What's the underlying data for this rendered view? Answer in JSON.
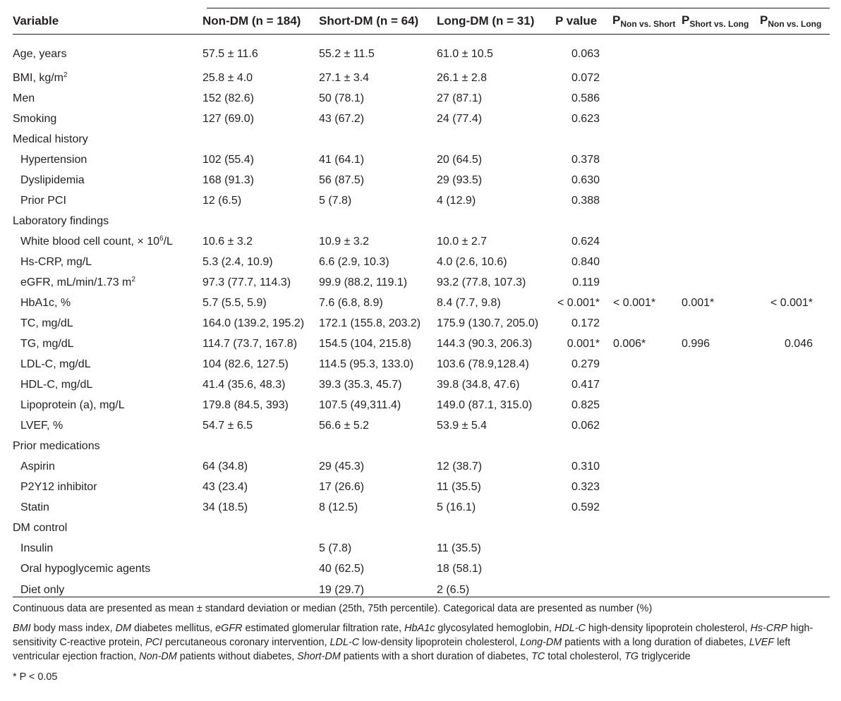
{
  "header": {
    "variable": "Variable",
    "non_dm": "Non-DM (n = 184)",
    "short_dm": "Short-DM (n = 64)",
    "long_dm": "Long-DM (n = 31)",
    "p_value": "P value",
    "p_non_short_base": "P",
    "p_non_short_sub": "Non vs. Short",
    "p_short_long_base": "P",
    "p_short_long_sub": "Short vs. Long",
    "p_non_long_base": "P",
    "p_non_long_sub": "Non vs. Long"
  },
  "rows": [
    {
      "label": "Age, years",
      "non": "57.5 ± 11.6",
      "short": "55.2 ± 11.5",
      "long": "61.0 ± 10.5",
      "p": "0.063",
      "p1": "",
      "p2": "",
      "p3": ""
    },
    {
      "label": "BMI, kg/m",
      "label_sup": "2",
      "non": "25.8 ± 4.0",
      "short": "27.1 ± 3.4",
      "long": "26.1 ± 2.8",
      "p": "0.072",
      "p1": "",
      "p2": "",
      "p3": ""
    },
    {
      "label": "Men",
      "non": "152 (82.6)",
      "short": "50 (78.1)",
      "long": "27 (87.1)",
      "p": "0.586",
      "p1": "",
      "p2": "",
      "p3": ""
    },
    {
      "label": "Smoking",
      "non": "127 (69.0)",
      "short": "43 (67.2)",
      "long": "24 (77.4)",
      "p": "0.623",
      "p1": "",
      "p2": "",
      "p3": ""
    },
    {
      "label": "Medical history",
      "non": "",
      "short": "",
      "long": "",
      "p": "",
      "p1": "",
      "p2": "",
      "p3": ""
    },
    {
      "label": "Hypertension",
      "non": "102 (55.4)",
      "short": "41 (64.1)",
      "long": "20 (64.5)",
      "p": "0.378",
      "p1": "",
      "p2": "",
      "p3": ""
    },
    {
      "label": "Dyslipidemia",
      "non": "168 (91.3)",
      "short": "56 (87.5)",
      "long": "29 (93.5)",
      "p": "0.630",
      "p1": "",
      "p2": "",
      "p3": ""
    },
    {
      "label": "Prior PCI",
      "non": "12 (6.5)",
      "short": "5 (7.8)",
      "long": "4 (12.9)",
      "p": "0.388",
      "p1": "",
      "p2": "",
      "p3": ""
    },
    {
      "label": "Laboratory findings",
      "non": "",
      "short": "",
      "long": "",
      "p": "",
      "p1": "",
      "p2": "",
      "p3": ""
    },
    {
      "label": "White blood cell count, × 10",
      "label_sup": "6",
      "label_after": "/L",
      "non": "10.6 ± 3.2",
      "short": "10.9 ± 3.2",
      "long": "10.0 ± 2.7",
      "p": "0.624",
      "p1": "",
      "p2": "",
      "p3": ""
    },
    {
      "label": "Hs-CRP, mg/L",
      "non": "5.3 (2.4, 10.9)",
      "short": "6.6 (2.9, 10.3)",
      "long": "4.0 (2.6, 10.6)",
      "p": "0.840",
      "p1": "",
      "p2": "",
      "p3": ""
    },
    {
      "label": "eGFR, mL/min/1.73 m",
      "label_sup": "2",
      "non": "97.3 (77.7, 114.3)",
      "short": "99.9 (88.2, 119.1)",
      "long": "93.2 (77.8, 107.3)",
      "p": "0.119",
      "p1": "",
      "p2": "",
      "p3": ""
    },
    {
      "label": "HbA1c,  %",
      "non": "5.7 (5.5, 5.9)",
      "short": "7.6 (6.8, 8.9)",
      "long": "8.4 (7.7, 9.8)",
      "p": "< 0.001*",
      "p1": "< 0.001*",
      "p2": "0.001*",
      "p3": "< 0.001*"
    },
    {
      "label": "TC, mg/dL",
      "non": "164.0 (139.2, 195.2)",
      "short": "172.1 (155.8, 203.2)",
      "long": "175.9 (130.7, 205.0)",
      "p": "0.172",
      "p1": "",
      "p2": "",
      "p3": ""
    },
    {
      "label": "TG, mg/dL",
      "non": "114.7 (73.7, 167.8)",
      "short": "154.5 (104, 215.8)",
      "long": "144.3 (90.3, 206.3)",
      "p": "0.001*",
      "p1": "0.006*",
      "p2": "0.996",
      "p3": "0.046"
    },
    {
      "label": "LDL-C, mg/dL",
      "non": "104 (82.6, 127.5)",
      "short": "114.5 (95.3, 133.0)",
      "long": "103.6 (78.9,128.4)",
      "p": "0.279",
      "p1": "",
      "p2": "",
      "p3": ""
    },
    {
      "label": "HDL-C, mg/dL",
      "non": "41.4 (35.6, 48.3)",
      "short": "39.3 (35.3, 45.7)",
      "long": "39.8 (34.8, 47.6)",
      "p": "0.417",
      "p1": "",
      "p2": "",
      "p3": ""
    },
    {
      "label": "Lipoprotein (a), mg/L",
      "non": "179.8 (84.5, 393)",
      "short": "107.5 (49,311.4)",
      "long": "149.0 (87.1, 315.0)",
      "p": "0.825",
      "p1": "",
      "p2": "",
      "p3": ""
    },
    {
      "label": "LVEF, %",
      "non": "54.7 ± 6.5",
      "short": "56.6 ± 5.2",
      "long": "53.9 ± 5.4",
      "p": "0.062",
      "p1": "",
      "p2": "",
      "p3": ""
    },
    {
      "label": "Prior medications",
      "non": "",
      "short": "",
      "long": "",
      "p": "",
      "p1": "",
      "p2": "",
      "p3": ""
    },
    {
      "label": "Aspirin",
      "non": "64 (34.8)",
      "short": "29 (45.3)",
      "long": "12 (38.7)",
      "p": "0.310",
      "p1": "",
      "p2": "",
      "p3": ""
    },
    {
      "label": "P2Y12 inhibitor",
      "non": "43 (23.4)",
      "short": "17 (26.6)",
      "long": "11 (35.5)",
      "p": "0.323",
      "p1": "",
      "p2": "",
      "p3": ""
    },
    {
      "label": "Statin",
      "non": "34 (18.5)",
      "short": "8 (12.5)",
      "long": "5 (16.1)",
      "p": "0.592",
      "p1": "",
      "p2": "",
      "p3": ""
    },
    {
      "label": "DM control",
      "non": "",
      "short": "",
      "long": "",
      "p": "",
      "p1": "",
      "p2": "",
      "p3": ""
    },
    {
      "label": "Insulin",
      "non": "",
      "short": "5 (7.8)",
      "long": "11 (35.5)",
      "p": "",
      "p1": "",
      "p2": "",
      "p3": ""
    },
    {
      "label": "Oral hypoglycemic agents",
      "non": "",
      "short": "40 (62.5)",
      "long": "18 (58.1)",
      "p": "",
      "p1": "",
      "p2": "",
      "p3": ""
    },
    {
      "label": "Diet only",
      "non": "",
      "short": "19 (29.7)",
      "long": "2 (6.5)",
      "p": "",
      "p1": "",
      "p2": "",
      "p3": ""
    }
  ],
  "footnotes": {
    "continuous": "Continuous data are presented as mean ± standard deviation or median (25th, 75th percentile). Categorical data are presented as number (%)",
    "abbreviations": [
      {
        "term": "BMI",
        "def": " body mass index, "
      },
      {
        "term": "DM",
        "def": " diabetes mellitus, "
      },
      {
        "term": "eGFR",
        "def": " estimated glomerular filtration rate, "
      },
      {
        "term": "HbA1c",
        "def": " glycosylated hemoglobin, "
      },
      {
        "term": "HDL-C",
        "def": " high-density lipoprotein cholesterol, "
      },
      {
        "term": "Hs-CRP",
        "def": " high-sensitivity C-reactive protein, "
      },
      {
        "term": "PCI",
        "def": " percutaneous coronary intervention, "
      },
      {
        "term": "LDL-C",
        "def": " low-density lipoprotein cholesterol, "
      },
      {
        "term": "Long-DM",
        "def": " patients with a long duration of diabetes, "
      },
      {
        "term": "LVEF",
        "def": " left ventricular ejection fraction, "
      },
      {
        "term": "Non-DM",
        "def": " patients without diabetes, "
      },
      {
        "term": "Short-DM",
        "def": " patients with a short duration of diabetes, "
      },
      {
        "term": "TC",
        "def": " total cholesterol, "
      },
      {
        "term": "TG",
        "def": " triglyceride"
      }
    ],
    "significance": "* P < 0.05"
  }
}
